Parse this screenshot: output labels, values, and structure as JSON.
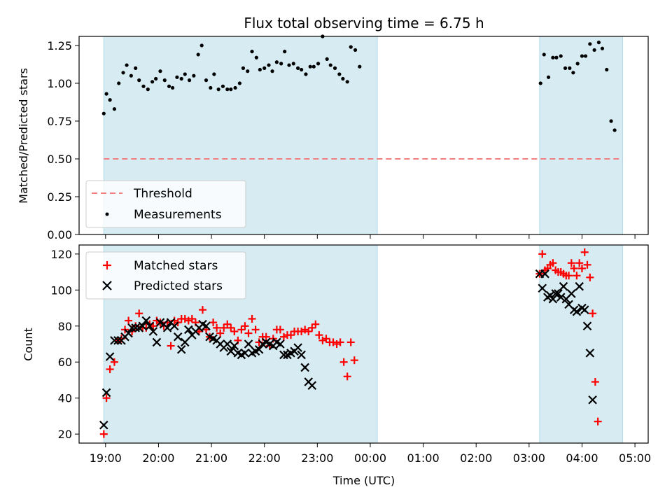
{
  "title": "Flux total observing time = 6.75 h",
  "colors": {
    "band": "#add8e6",
    "threshold": "#f08080",
    "measurement": "#000000",
    "matched": "#ff0000",
    "predicted": "#000000"
  },
  "chart_data": [
    {
      "type": "scatter",
      "panel": "top",
      "ylabel": "Matched/Predicted stars",
      "xlabel": "",
      "ylim": [
        0,
        1.31
      ],
      "yticks": [
        "0.00",
        "0.25",
        "0.50",
        "0.75",
        "1.00",
        "1.25"
      ],
      "ytick_values": [
        0,
        0.25,
        0.5,
        0.75,
        1.0,
        1.25
      ],
      "legend_position": "lower-left",
      "threshold": {
        "name": "Threshold",
        "value": 0.5,
        "x_range": [
          "18:58",
          "04:46"
        ]
      },
      "series": [
        {
          "name": "Measurements",
          "points": [
            [
              "18:58",
              0.8
            ],
            [
              "19:01",
              0.93
            ],
            [
              "19:05",
              0.89
            ],
            [
              "19:10",
              0.83
            ],
            [
              "19:15",
              1.0
            ],
            [
              "19:20",
              1.07
            ],
            [
              "19:24",
              1.12
            ],
            [
              "19:29",
              1.05
            ],
            [
              "19:34",
              1.1
            ],
            [
              "19:38",
              1.02
            ],
            [
              "19:43",
              0.98
            ],
            [
              "19:48",
              0.96
            ],
            [
              "19:53",
              1.01
            ],
            [
              "19:57",
              1.03
            ],
            [
              "20:02",
              1.08
            ],
            [
              "20:07",
              1.02
            ],
            [
              "20:12",
              0.98
            ],
            [
              "20:16",
              0.97
            ],
            [
              "20:21",
              1.04
            ],
            [
              "20:26",
              1.03
            ],
            [
              "20:30",
              1.06
            ],
            [
              "20:35",
              1.02
            ],
            [
              "20:40",
              1.05
            ],
            [
              "20:45",
              1.19
            ],
            [
              "20:49",
              1.25
            ],
            [
              "20:54",
              1.02
            ],
            [
              "20:59",
              0.97
            ],
            [
              "21:03",
              1.06
            ],
            [
              "21:08",
              0.96
            ],
            [
              "21:13",
              0.98
            ],
            [
              "21:18",
              0.96
            ],
            [
              "21:22",
              0.96
            ],
            [
              "21:27",
              0.97
            ],
            [
              "21:32",
              1.0
            ],
            [
              "21:36",
              1.1
            ],
            [
              "21:41",
              1.08
            ],
            [
              "21:46",
              1.21
            ],
            [
              "21:51",
              1.17
            ],
            [
              "21:55",
              1.09
            ],
            [
              "22:00",
              1.1
            ],
            [
              "22:05",
              1.12
            ],
            [
              "22:09",
              1.08
            ],
            [
              "22:14",
              1.14
            ],
            [
              "22:19",
              1.13
            ],
            [
              "22:23",
              1.21
            ],
            [
              "22:28",
              1.12
            ],
            [
              "22:33",
              1.13
            ],
            [
              "22:38",
              1.1
            ],
            [
              "22:42",
              1.09
            ],
            [
              "22:47",
              1.06
            ],
            [
              "22:52",
              1.11
            ],
            [
              "22:56",
              1.11
            ],
            [
              "23:01",
              1.13
            ],
            [
              "23:06",
              1.31
            ],
            [
              "23:11",
              1.16
            ],
            [
              "23:15",
              1.12
            ],
            [
              "23:20",
              1.1
            ],
            [
              "23:25",
              1.06
            ],
            [
              "23:29",
              1.03
            ],
            [
              "23:34",
              1.01
            ],
            [
              "23:38",
              1.24
            ],
            [
              "23:43",
              1.22
            ],
            [
              "23:48",
              1.11
            ],
            [
              "03:13",
              1.0
            ],
            [
              "03:17",
              1.19
            ],
            [
              "03:22",
              1.04
            ],
            [
              "03:27",
              1.17
            ],
            [
              "03:31",
              1.17
            ],
            [
              "03:36",
              1.18
            ],
            [
              "03:41",
              1.1
            ],
            [
              "03:46",
              1.1
            ],
            [
              "03:50",
              1.07
            ],
            [
              "03:55",
              1.13
            ],
            [
              "04:00",
              1.18
            ],
            [
              "04:04",
              1.18
            ],
            [
              "04:09",
              1.26
            ],
            [
              "04:14",
              1.22
            ],
            [
              "04:19",
              1.27
            ],
            [
              "04:23",
              1.23
            ],
            [
              "04:28",
              1.09
            ],
            [
              "04:33",
              0.75
            ],
            [
              "04:37",
              0.69
            ]
          ]
        }
      ]
    },
    {
      "type": "scatter",
      "panel": "bottom",
      "ylabel": "Count",
      "xlabel": "Time (UTC)",
      "ylim": [
        15,
        125
      ],
      "yticks": [
        "20",
        "40",
        "60",
        "80",
        "100",
        "120"
      ],
      "ytick_values": [
        20,
        40,
        60,
        80,
        100,
        120
      ],
      "legend_position": "upper-left",
      "series": [
        {
          "name": "Matched stars",
          "marker": "plus",
          "points": [
            [
              "18:58",
              20
            ],
            [
              "19:01",
              40
            ],
            [
              "19:05",
              56
            ],
            [
              "19:10",
              60
            ],
            [
              "19:14",
              72
            ],
            [
              "19:18",
              73
            ],
            [
              "19:22",
              78
            ],
            [
              "19:26",
              83
            ],
            [
              "19:30",
              77
            ],
            [
              "19:34",
              80
            ],
            [
              "19:38",
              87
            ],
            [
              "19:42",
              79
            ],
            [
              "19:46",
              79
            ],
            [
              "19:50",
              81
            ],
            [
              "19:54",
              80
            ],
            [
              "19:58",
              83
            ],
            [
              "20:02",
              82
            ],
            [
              "20:06",
              80
            ],
            [
              "20:10",
              82
            ],
            [
              "20:14",
              69
            ],
            [
              "20:18",
              83
            ],
            [
              "20:22",
              82
            ],
            [
              "20:26",
              84
            ],
            [
              "20:30",
              84
            ],
            [
              "20:34",
              83
            ],
            [
              "20:38",
              84
            ],
            [
              "20:42",
              82
            ],
            [
              "20:46",
              77
            ],
            [
              "20:50",
              89
            ],
            [
              "20:54",
              78
            ],
            [
              "20:58",
              74
            ],
            [
              "21:02",
              82
            ],
            [
              "21:06",
              79
            ],
            [
              "21:10",
              76
            ],
            [
              "21:14",
              79
            ],
            [
              "21:18",
              81
            ],
            [
              "21:22",
              79
            ],
            [
              "21:26",
              77
            ],
            [
              "21:30",
              72
            ],
            [
              "21:34",
              78
            ],
            [
              "21:38",
              80
            ],
            [
              "21:42",
              76
            ],
            [
              "21:46",
              84
            ],
            [
              "21:50",
              78
            ],
            [
              "21:54",
              71
            ],
            [
              "21:58",
              74
            ],
            [
              "22:02",
              74
            ],
            [
              "22:06",
              69
            ],
            [
              "22:10",
              73
            ],
            [
              "22:14",
              78
            ],
            [
              "22:18",
              78
            ],
            [
              "22:22",
              74
            ],
            [
              "22:26",
              75
            ],
            [
              "22:30",
              75
            ],
            [
              "22:34",
              77
            ],
            [
              "22:38",
              77
            ],
            [
              "22:42",
              77
            ],
            [
              "22:46",
              78
            ],
            [
              "22:50",
              77
            ],
            [
              "22:54",
              79
            ],
            [
              "22:58",
              81
            ],
            [
              "23:02",
              75
            ],
            [
              "23:06",
              72
            ],
            [
              "23:10",
              73
            ],
            [
              "23:14",
              71
            ],
            [
              "23:18",
              71
            ],
            [
              "23:22",
              70
            ],
            [
              "23:26",
              71
            ],
            [
              "23:30",
              60
            ],
            [
              "23:34",
              52
            ],
            [
              "23:38",
              71
            ],
            [
              "23:42",
              61
            ],
            [
              "03:12",
              109
            ],
            [
              "03:15",
              120
            ],
            [
              "03:18",
              111
            ],
            [
              "03:21",
              112
            ],
            [
              "03:24",
              114
            ],
            [
              "03:27",
              115
            ],
            [
              "03:30",
              111
            ],
            [
              "03:33",
              110
            ],
            [
              "03:36",
              110
            ],
            [
              "03:39",
              109
            ],
            [
              "03:42",
              108
            ],
            [
              "03:45",
              108
            ],
            [
              "03:48",
              115
            ],
            [
              "03:51",
              112
            ],
            [
              "03:54",
              108
            ],
            [
              "03:57",
              115
            ],
            [
              "04:00",
              112
            ],
            [
              "04:03",
              121
            ],
            [
              "04:06",
              114
            ],
            [
              "04:09",
              107
            ],
            [
              "04:12",
              87
            ],
            [
              "04:15",
              49
            ],
            [
              "04:18",
              27
            ]
          ]
        },
        {
          "name": "Predicted stars",
          "marker": "x",
          "points": [
            [
              "18:58",
              25
            ],
            [
              "19:01",
              43
            ],
            [
              "19:05",
              63
            ],
            [
              "19:10",
              72
            ],
            [
              "19:14",
              72
            ],
            [
              "19:18",
              72
            ],
            [
              "19:22",
              74
            ],
            [
              "19:26",
              76
            ],
            [
              "19:30",
              79
            ],
            [
              "19:34",
              79
            ],
            [
              "19:38",
              79
            ],
            [
              "19:42",
              80
            ],
            [
              "19:46",
              83
            ],
            [
              "19:50",
              80
            ],
            [
              "19:54",
              77
            ],
            [
              "19:58",
              71
            ],
            [
              "20:02",
              82
            ],
            [
              "20:06",
              81
            ],
            [
              "20:10",
              79
            ],
            [
              "20:14",
              82
            ],
            [
              "20:18",
              80
            ],
            [
              "20:22",
              74
            ],
            [
              "20:26",
              67
            ],
            [
              "20:30",
              71
            ],
            [
              "20:34",
              78
            ],
            [
              "20:38",
              75
            ],
            [
              "20:42",
              77
            ],
            [
              "20:46",
              79
            ],
            [
              "20:50",
              81
            ],
            [
              "20:54",
              80
            ],
            [
              "20:58",
              74
            ],
            [
              "21:02",
              73
            ],
            [
              "21:06",
              72
            ],
            [
              "21:10",
              70
            ],
            [
              "21:14",
              68
            ],
            [
              "21:18",
              70
            ],
            [
              "21:22",
              66
            ],
            [
              "21:26",
              69
            ],
            [
              "21:30",
              65
            ],
            [
              "21:34",
              64
            ],
            [
              "21:38",
              65
            ],
            [
              "21:42",
              70
            ],
            [
              "21:46",
              65
            ],
            [
              "21:50",
              66
            ],
            [
              "21:54",
              67
            ],
            [
              "21:58",
              70
            ],
            [
              "22:02",
              71
            ],
            [
              "22:06",
              70
            ],
            [
              "22:10",
              69
            ],
            [
              "22:14",
              71
            ],
            [
              "22:18",
              70
            ],
            [
              "22:22",
              64
            ],
            [
              "22:26",
              64
            ],
            [
              "22:30",
              65
            ],
            [
              "22:34",
              66
            ],
            [
              "22:38",
              68
            ],
            [
              "22:42",
              64
            ],
            [
              "22:46",
              57
            ],
            [
              "22:50",
              49
            ],
            [
              "22:54",
              47
            ],
            [
              "03:12",
              109
            ],
            [
              "03:15",
              101
            ],
            [
              "03:18",
              109
            ],
            [
              "03:21",
              96
            ],
            [
              "03:24",
              97
            ],
            [
              "03:27",
              95
            ],
            [
              "03:30",
              98
            ],
            [
              "03:33",
              98
            ],
            [
              "03:36",
              96
            ],
            [
              "03:39",
              102
            ],
            [
              "03:42",
              95
            ],
            [
              "03:45",
              92
            ],
            [
              "03:48",
              98
            ],
            [
              "03:51",
              89
            ],
            [
              "03:54",
              88
            ],
            [
              "03:57",
              102
            ],
            [
              "04:00",
              90
            ],
            [
              "04:03",
              89
            ],
            [
              "04:06",
              80
            ],
            [
              "04:09",
              65
            ],
            [
              "04:12",
              39
            ]
          ]
        }
      ]
    }
  ],
  "shared_x": {
    "xlim": [
      "18:30",
      "05:15"
    ],
    "ticks": [
      "19:00",
      "20:00",
      "21:00",
      "22:00",
      "23:00",
      "00:00",
      "01:00",
      "02:00",
      "03:00",
      "04:00",
      "05:00"
    ],
    "shaded_ranges": [
      [
        "18:58",
        "00:08"
      ],
      [
        "03:12",
        "04:46"
      ]
    ]
  }
}
